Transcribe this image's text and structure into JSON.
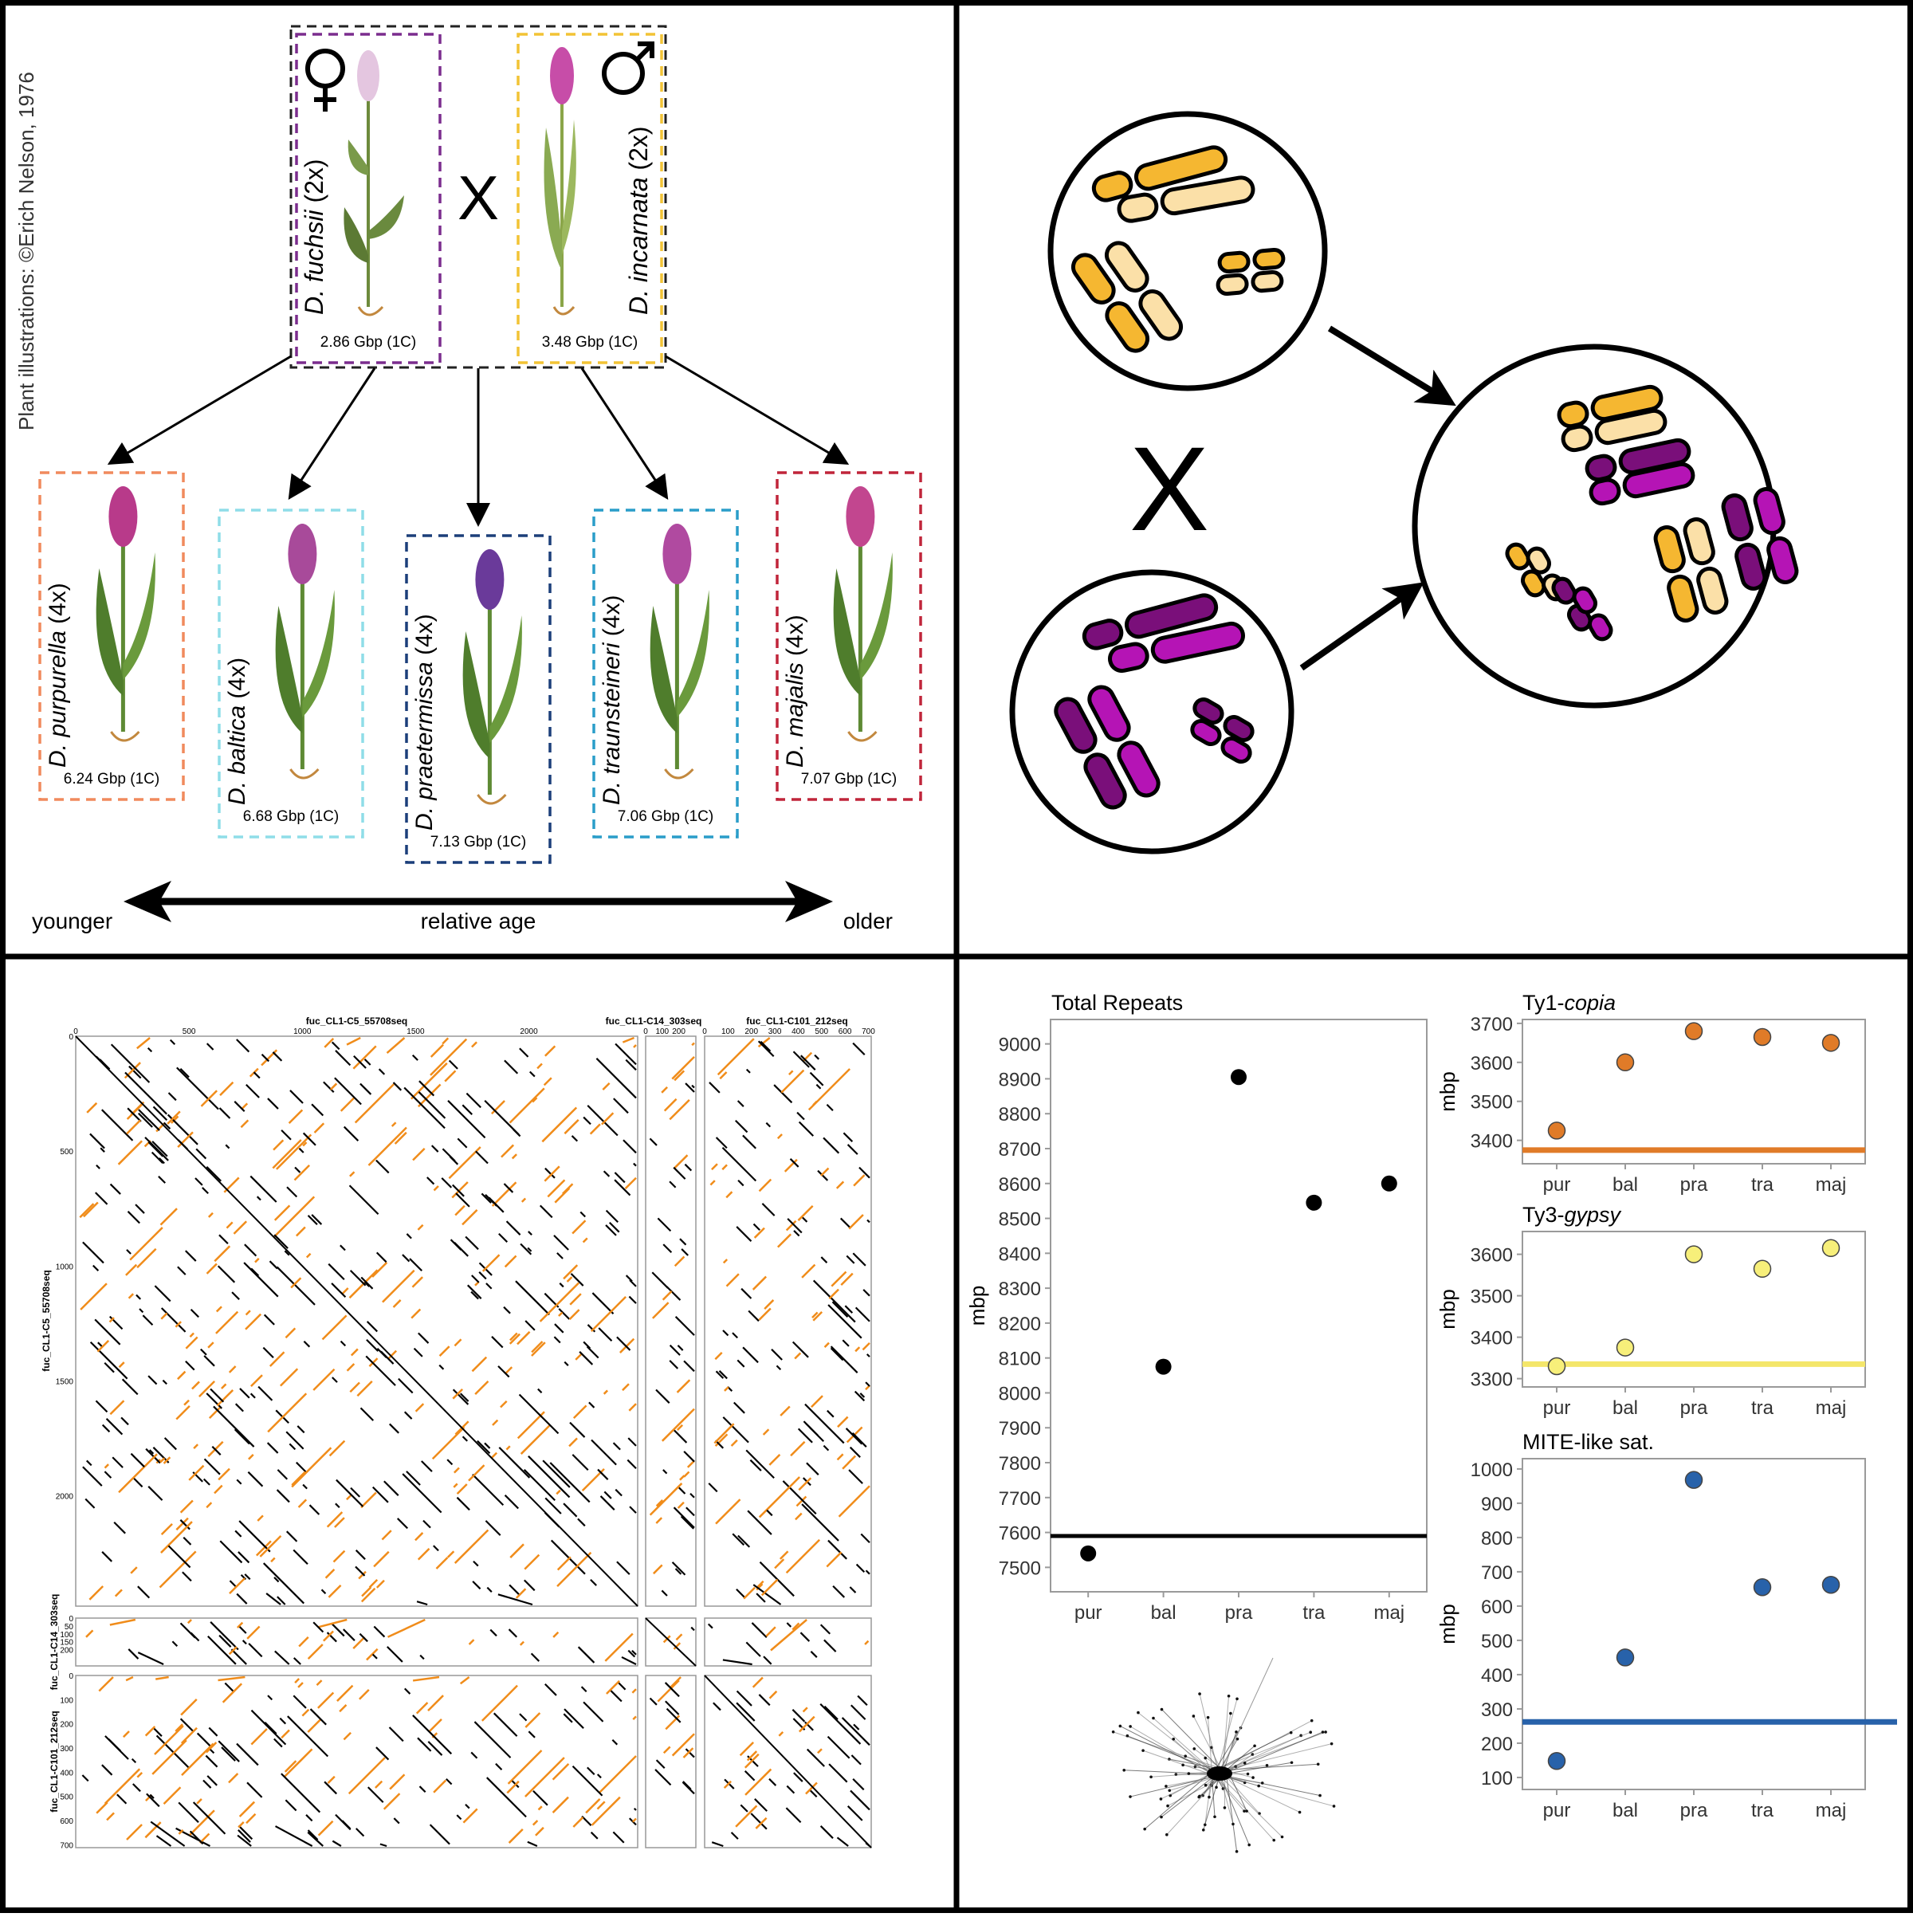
{
  "credit": "Plant illustrations: ©Erich Nelson, 1976",
  "parents": {
    "female": {
      "genus": "D.",
      "species": "fuchsii",
      "ploidy": "(2x)",
      "genome": "2.86 Gbp (1C)",
      "color": "#7b2d8e"
    },
    "male": {
      "genus": "D.",
      "species": "incarnata",
      "ploidy": "(2x)",
      "genome": "3.48 Gbp (1C)",
      "color": "#f2c335"
    },
    "cross_symbol": "X"
  },
  "polyploids": [
    {
      "genus": "D.",
      "species": "purpurella",
      "ploidy": "(4x)",
      "genome": "6.24 Gbp (1C)",
      "color": "#f08a5d"
    },
    {
      "genus": "D.",
      "species": "baltica",
      "ploidy": "(4x)",
      "genome": "6.68 Gbp (1C)",
      "color": "#8fdde8"
    },
    {
      "genus": "D.",
      "species": "praetermissa",
      "ploidy": "(4x)",
      "genome": "7.13 Gbp (1C)",
      "color": "#1c3f7a"
    },
    {
      "genus": "D.",
      "species": "traunsteineri",
      "ploidy": "(4x)",
      "genome": "7.06 Gbp (1C)",
      "color": "#2a9dc9"
    },
    {
      "genus": "D.",
      "species": "majalis",
      "ploidy": "(4x)",
      "genome": "7.07 Gbp (1C)",
      "color": "#c0253a"
    }
  ],
  "age_axis": {
    "left": "younger",
    "center": "relative age",
    "right": "older"
  },
  "chromosome_panel": {
    "cross_symbol": "X",
    "colors": {
      "incarnata_dark": "#f5b731",
      "incarnata_light": "#fbe0a8",
      "fuchsii_dark": "#7a0f7a",
      "fuchsii_light": "#b514b5"
    }
  },
  "dotplot": {
    "column_labels": [
      "fuc_CL1-C5_55708seq",
      "fuc_CL1-C14_303seq",
      "fuc_CL1-C101_212seq"
    ],
    "row_labels": [
      "fuc_CL1-C5_55708seq",
      "fuc_CL1-C14_303seq",
      "fuc_CL1-C101_212seq"
    ],
    "col1_ticks": [
      "0",
      "500",
      "1000",
      "1500",
      "2000"
    ],
    "col2_ticks": [
      "0",
      "100",
      "200"
    ],
    "col3_ticks": [
      "0",
      "100",
      "200",
      "300",
      "400",
      "500",
      "600",
      "700"
    ],
    "row1_ticks": [
      "0",
      "500",
      "1000",
      "1500",
      "2000"
    ],
    "row2_ticks": [
      "0",
      "50",
      "100",
      "150",
      "200"
    ],
    "row3_ticks": [
      "0",
      "100",
      "200",
      "300",
      "400",
      "500",
      "600",
      "700"
    ],
    "colors": {
      "forward": "#000000",
      "reverse": "#f08c1a"
    }
  },
  "chart_data": [
    {
      "type": "scatter",
      "title": "Total Repeats",
      "ylabel": "mbp",
      "categories": [
        "pur",
        "bal",
        "pra",
        "tra",
        "maj"
      ],
      "values": [
        7540,
        8075,
        8905,
        8545,
        8600
      ],
      "reference_line": 7590,
      "ylim": [
        7430,
        9070
      ],
      "yticks": [
        7500,
        7600,
        7700,
        7800,
        7900,
        8000,
        8100,
        8200,
        8300,
        8400,
        8500,
        8600,
        8700,
        8800,
        8900,
        9000
      ],
      "color": "#000000",
      "line_color": "#000000"
    },
    {
      "type": "scatter",
      "title_prefix": "Ty1-",
      "title_italic": "copia",
      "ylabel": "mbp",
      "categories": [
        "pur",
        "bal",
        "pra",
        "tra",
        "maj"
      ],
      "values": [
        3425,
        3600,
        3680,
        3665,
        3650
      ],
      "reference_line": 3375,
      "ylim": [
        3340,
        3710
      ],
      "yticks": [
        3400,
        3500,
        3600,
        3700
      ],
      "color": "#e07b28",
      "line_color": "#e07b28"
    },
    {
      "type": "scatter",
      "title_prefix": "Ty3-",
      "title_italic": "gypsy",
      "ylabel": "mbp",
      "categories": [
        "pur",
        "bal",
        "pra",
        "tra",
        "maj"
      ],
      "values": [
        3330,
        3375,
        3600,
        3565,
        3615
      ],
      "reference_line": 3335,
      "ylim": [
        3280,
        3655
      ],
      "yticks": [
        3300,
        3400,
        3500,
        3600
      ],
      "color": "#f7ef7a",
      "line_color": "#f4e66a"
    },
    {
      "type": "scatter",
      "title": "MITE-like sat.",
      "ylabel": "mbp",
      "categories": [
        "pur",
        "bal",
        "pra",
        "tra",
        "maj"
      ],
      "values": [
        148,
        450,
        968,
        655,
        662
      ],
      "reference_line": 262,
      "ylim": [
        65,
        1030
      ],
      "yticks": [
        100,
        200,
        300,
        400,
        500,
        600,
        700,
        800,
        900,
        1000
      ],
      "color": "#2862aa",
      "line_color": "#2862aa"
    }
  ]
}
